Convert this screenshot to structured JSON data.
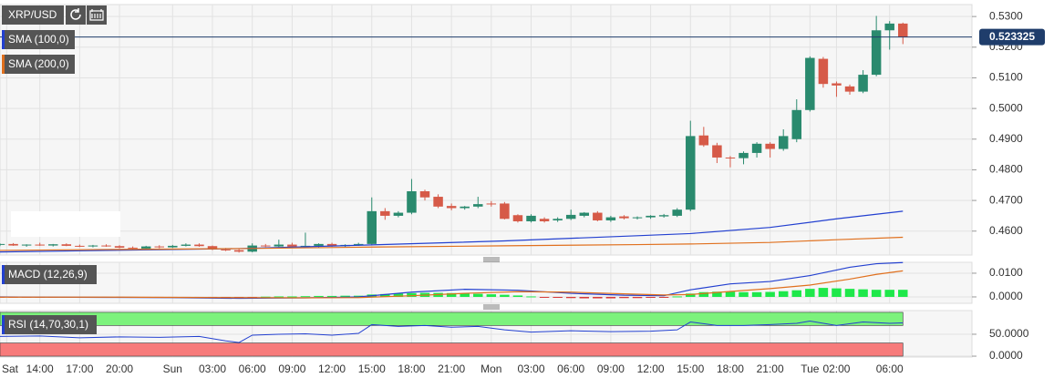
{
  "chart_data": [
    {
      "type": "candlestick",
      "title": "XRP/USD",
      "x": [
        -3,
        -2,
        -1,
        0,
        1,
        2,
        3,
        4,
        5,
        6,
        7,
        8,
        9,
        10,
        11,
        12,
        13,
        14,
        15,
        16,
        17,
        18,
        19,
        20,
        21,
        22,
        23,
        24,
        25,
        26,
        27,
        28,
        29,
        30,
        31,
        32,
        33,
        34,
        35,
        36,
        37,
        38,
        39,
        40,
        41,
        42,
        43,
        44,
        45,
        46,
        47,
        48,
        49,
        50,
        51,
        52,
        53,
        54,
        55,
        56,
        57,
        58,
        59,
        60,
        61,
        62,
        63,
        64,
        65
      ],
      "open": [
        0.4556,
        0.4558,
        0.4553,
        0.4556,
        0.4553,
        0.4557,
        0.4552,
        0.455,
        0.4553,
        0.4551,
        0.4546,
        0.4543,
        0.455,
        0.4547,
        0.4552,
        0.4556,
        0.4551,
        0.454,
        0.4538,
        0.4533,
        0.4553,
        0.455,
        0.4556,
        0.4549,
        0.4552,
        0.4558,
        0.4551,
        0.4555,
        0.4558,
        0.4665,
        0.465,
        0.466,
        0.473,
        0.4712,
        0.4682,
        0.4675,
        0.468,
        0.469,
        0.469,
        0.4652,
        0.4632,
        0.464,
        0.4635,
        0.464,
        0.465,
        0.466,
        0.4635,
        0.4648,
        0.4642,
        0.4645,
        0.4648,
        0.465,
        0.467,
        0.4912,
        0.488,
        0.484,
        0.4838,
        0.4855,
        0.4885,
        0.4868,
        0.49,
        0.4995,
        0.5162,
        0.5082,
        0.5072,
        0.5055,
        0.511,
        0.5255,
        0.5277
      ],
      "high": [
        0.456,
        0.4561,
        0.4557,
        0.4562,
        0.4558,
        0.456,
        0.4556,
        0.4555,
        0.4557,
        0.4554,
        0.455,
        0.4552,
        0.4554,
        0.4555,
        0.456,
        0.456,
        0.4553,
        0.4545,
        0.4543,
        0.456,
        0.4558,
        0.4572,
        0.4562,
        0.4595,
        0.456,
        0.4562,
        0.4557,
        0.4562,
        0.471,
        0.4675,
        0.4665,
        0.477,
        0.4735,
        0.472,
        0.469,
        0.4682,
        0.4712,
        0.4698,
        0.4695,
        0.4655,
        0.4655,
        0.4645,
        0.4645,
        0.467,
        0.4662,
        0.4665,
        0.465,
        0.4652,
        0.4648,
        0.4652,
        0.4656,
        0.4675,
        0.496,
        0.494,
        0.4888,
        0.4845,
        0.486,
        0.489,
        0.489,
        0.4932,
        0.503,
        0.517,
        0.5168,
        0.5088,
        0.5078,
        0.5125,
        0.5302,
        0.5285,
        0.528
      ],
      "low": [
        0.4551,
        0.4552,
        0.4549,
        0.4552,
        0.455,
        0.4551,
        0.4548,
        0.4547,
        0.4549,
        0.4544,
        0.454,
        0.4541,
        0.4544,
        0.4545,
        0.455,
        0.4549,
        0.4538,
        0.4535,
        0.453,
        0.4531,
        0.4548,
        0.4548,
        0.4547,
        0.4547,
        0.4547,
        0.4549,
        0.4548,
        0.4552,
        0.4555,
        0.4637,
        0.4645,
        0.4655,
        0.47,
        0.4675,
        0.4668,
        0.467,
        0.4675,
        0.468,
        0.4638,
        0.4628,
        0.4628,
        0.4628,
        0.463,
        0.4636,
        0.4645,
        0.4632,
        0.463,
        0.4638,
        0.4638,
        0.464,
        0.4644,
        0.4646,
        0.4665,
        0.4875,
        0.4822,
        0.4808,
        0.4818,
        0.484,
        0.484,
        0.4862,
        0.489,
        0.499,
        0.5068,
        0.5038,
        0.5045,
        0.505,
        0.5105,
        0.5192,
        0.521
      ],
      "close": [
        0.4558,
        0.4553,
        0.4556,
        0.4553,
        0.4557,
        0.4552,
        0.455,
        0.4553,
        0.4551,
        0.4546,
        0.4543,
        0.455,
        0.4547,
        0.4552,
        0.4556,
        0.4551,
        0.454,
        0.4538,
        0.4533,
        0.4553,
        0.455,
        0.4556,
        0.4549,
        0.4552,
        0.4558,
        0.4551,
        0.4555,
        0.4558,
        0.4665,
        0.465,
        0.466,
        0.473,
        0.471,
        0.468,
        0.4675,
        0.468,
        0.4688,
        0.4687,
        0.464,
        0.4632,
        0.465,
        0.4632,
        0.464,
        0.4653,
        0.466,
        0.4635,
        0.4645,
        0.4642,
        0.4645,
        0.465,
        0.4652,
        0.467,
        0.491,
        0.488,
        0.484,
        0.4838,
        0.4855,
        0.4885,
        0.4868,
        0.491,
        0.4995,
        0.5165,
        0.508,
        0.5075,
        0.5055,
        0.511,
        0.5255,
        0.5277,
        0.5233
      ],
      "up_color": "#2a8a6e",
      "down_color": "#d65a48",
      "ylim": [
        0.4522,
        0.5339
      ],
      "yticks": [
        {
          "value": 0.53,
          "label": "0.5300"
        },
        {
          "value": 0.52,
          "label": "0.5200"
        },
        {
          "value": 0.51,
          "label": "0.5100"
        },
        {
          "value": 0.5,
          "label": "0.5000"
        },
        {
          "value": 0.49,
          "label": "0.4900"
        },
        {
          "value": 0.48,
          "label": "0.4800"
        },
        {
          "value": 0.47,
          "label": "0.4700"
        },
        {
          "value": 0.46,
          "label": "0.4600"
        }
      ],
      "last_price": 0.523325,
      "last_price_color": "#1f3d6b",
      "series": [
        {
          "name": "SMA (100,0)",
          "color": "#2340d0",
          "x": [
            -3,
            5,
            15,
            25,
            35,
            45,
            49,
            55,
            60,
            65
          ],
          "values": [
            0.4532,
            0.4537,
            0.4543,
            0.4555,
            0.4568,
            0.4585,
            0.4592,
            0.4612,
            0.464,
            0.4665
          ]
        },
        {
          "name": "SMA (200,0)",
          "color": "#e0701e",
          "x": [
            -3,
            5,
            15,
            25,
            35,
            45,
            49,
            55,
            60,
            65
          ],
          "values": [
            0.4537,
            0.454,
            0.4543,
            0.4548,
            0.4552,
            0.4556,
            0.4558,
            0.4563,
            0.4572,
            0.458
          ]
        }
      ]
    },
    {
      "type": "macd",
      "title": "MACD (12,26,9)",
      "histogram": {
        "up_color": "#1ee84a",
        "down_color": "#d63a3a",
        "values": [
          -0.0002,
          -0.0002,
          -0.0002,
          -0.0001,
          -0.0001,
          -0.0001,
          -0.0001,
          -0.0001,
          -0.0002,
          -0.0002,
          -0.0002,
          -0.0002,
          -0.0002,
          -0.0001,
          -0.0001,
          -0.0002,
          -0.0003,
          -0.0003,
          -0.0003,
          -0.0002,
          0.0001,
          0.0002,
          0.0002,
          0.0003,
          0.0004,
          0.0004,
          0.0005,
          0.0005,
          0.001,
          0.0012,
          0.0014,
          0.0016,
          0.0017,
          0.0017,
          0.0016,
          0.0015,
          0.0013,
          0.0011,
          0.0009,
          0.0006,
          0.0002,
          -0.0002,
          -0.0004,
          -0.0005,
          -0.0006,
          -0.0006,
          -0.0006,
          -0.0005,
          -0.0005,
          -0.0004,
          -0.0003,
          0.0002,
          0.0014,
          0.002,
          0.0022,
          0.0022,
          0.002,
          0.002,
          0.0021,
          0.0024,
          0.0028,
          0.0034,
          0.0038,
          0.0036,
          0.0034,
          0.0032,
          0.003,
          0.003,
          0.003
        ]
      },
      "lines": [
        {
          "color": "#2340d0",
          "x": [
            -3,
            0,
            5,
            10,
            15,
            20,
            24,
            28,
            32,
            36,
            40,
            44,
            47,
            49,
            52,
            55,
            58,
            61,
            63,
            65
          ],
          "values": [
            0.0,
            -0.0001,
            -0.0002,
            -0.0003,
            -0.0006,
            -0.0004,
            0.0,
            0.002,
            0.0032,
            0.0028,
            0.0015,
            0.0007,
            0.0005,
            0.003,
            0.0055,
            0.0065,
            0.009,
            0.0125,
            0.014,
            0.0145
          ]
        },
        {
          "color": "#e0701e",
          "x": [
            -3,
            0,
            5,
            10,
            15,
            20,
            24,
            28,
            32,
            36,
            40,
            44,
            47,
            49,
            52,
            55,
            58,
            61,
            63,
            65
          ],
          "values": [
            -0.0001,
            -0.0001,
            -0.0001,
            -0.0002,
            -0.0003,
            -0.0004,
            -0.0003,
            0.0005,
            0.0015,
            0.0022,
            0.002,
            0.0013,
            0.0008,
            0.001,
            0.0023,
            0.0035,
            0.005,
            0.0075,
            0.0095,
            0.011
          ]
        }
      ],
      "ylim": [
        -0.0027,
        0.0146
      ],
      "yticks": [
        {
          "value": 0.01,
          "label": "0.0100"
        },
        {
          "value": 0,
          "label": "0.0000"
        }
      ]
    },
    {
      "type": "line",
      "title": "RSI (14,70,30,1)",
      "color": "#2340d0",
      "x": [
        -3,
        0,
        3,
        6,
        9,
        12,
        14,
        15,
        16,
        18,
        20,
        22,
        24,
        25,
        27,
        29,
        31,
        33,
        35,
        37,
        40,
        43,
        46,
        48,
        49,
        51,
        53,
        55,
        57,
        58,
        60,
        62,
        64,
        65
      ],
      "values": [
        45,
        46,
        42,
        44,
        43,
        45,
        35,
        31,
        48,
        50,
        51,
        48,
        52,
        72,
        68,
        70,
        66,
        68,
        60,
        55,
        58,
        56,
        57,
        60,
        78,
        70,
        70,
        72,
        75,
        80,
        70,
        78,
        75,
        76
      ],
      "bands": [
        {
          "from": 70,
          "to": 100,
          "color": "#7cf27c"
        },
        {
          "from": 0,
          "to": 30,
          "color": "#f77b7b"
        }
      ],
      "ylim": [
        -2,
        104
      ],
      "yticks": [
        {
          "value": 50,
          "label": "50.0000"
        },
        {
          "value": 0,
          "label": "0.0000"
        }
      ],
      "xlim": [
        -3,
        70.2
      ],
      "xticks": [
        {
          "value": -2.5,
          "label": "Sat"
        },
        {
          "value": 0,
          "label": "14:00"
        },
        {
          "value": 3,
          "label": "17:00"
        },
        {
          "value": 6,
          "label": "20:00"
        },
        {
          "value": 10,
          "label": "Sun"
        },
        {
          "value": 13,
          "label": "03:00"
        },
        {
          "value": 16,
          "label": "06:00"
        },
        {
          "value": 19,
          "label": "09:00"
        },
        {
          "value": 22,
          "label": "12:00"
        },
        {
          "value": 25,
          "label": "15:00"
        },
        {
          "value": 28,
          "label": "18:00"
        },
        {
          "value": 31,
          "label": "21:00"
        },
        {
          "value": 34,
          "label": "Mon"
        },
        {
          "value": 37,
          "label": "03:00"
        },
        {
          "value": 40,
          "label": "06:00"
        },
        {
          "value": 43,
          "label": "09:00"
        },
        {
          "value": 46,
          "label": "12:00"
        },
        {
          "value": 49,
          "label": "15:00"
        },
        {
          "value": 52,
          "label": "18:00"
        },
        {
          "value": 55,
          "label": "21:00"
        },
        {
          "value": 58,
          "label": "Tue"
        },
        {
          "value": 60,
          "label": "02:00"
        },
        {
          "value": 64,
          "label": "06:00"
        }
      ]
    }
  ]
}
